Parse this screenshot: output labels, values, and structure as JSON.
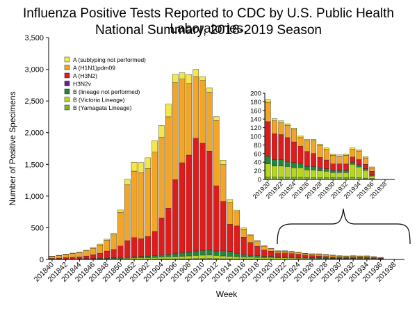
{
  "chart_data": {
    "type": "bar",
    "stacked": true,
    "title": "Influenza Positive Tests Reported to CDC by U.S. Public Health Laboratories,",
    "subtitle": "National Summary, 2018-2019 Season",
    "xlabel": "Week",
    "ylabel": "Number of Positive Specimens",
    "ylim": [
      0,
      3500
    ],
    "yticks": [
      0,
      500,
      1000,
      1500,
      2000,
      2500,
      3000,
      3500
    ],
    "ytick_labels": [
      "0",
      "500",
      "1,000",
      "1,500",
      "2,000",
      "2,500",
      "3,000",
      "3,500"
    ],
    "grid": false,
    "legend_position": "top-left",
    "categories": [
      "201840",
      "201841",
      "201842",
      "201843",
      "201844",
      "201845",
      "201846",
      "201847",
      "201848",
      "201849",
      "201850",
      "201851",
      "201852",
      "201901",
      "201902",
      "201903",
      "201904",
      "201905",
      "201906",
      "201907",
      "201908",
      "201909",
      "201910",
      "201911",
      "201912",
      "201913",
      "201914",
      "201915",
      "201916",
      "201917",
      "201918",
      "201919",
      "201920",
      "201921",
      "201922",
      "201923",
      "201924",
      "201925",
      "201926",
      "201927",
      "201928",
      "201929",
      "201930",
      "201931",
      "201932",
      "201933",
      "201934",
      "201935",
      "201936",
      "201937",
      "201938",
      "201939"
    ],
    "x_tick_labels": [
      "201840",
      "201842",
      "201844",
      "201846",
      "201848",
      "201850",
      "201852",
      "201902",
      "201904",
      "201906",
      "201908",
      "201910",
      "201912",
      "201914",
      "201916",
      "201918",
      "201920",
      "201922",
      "201924",
      "201926",
      "201928",
      "201930",
      "201932",
      "201934",
      "201936",
      "201938"
    ],
    "series": [
      {
        "name": "A (subtyping not performed)",
        "color": "#f5e74a",
        "values": [
          5,
          5,
          6,
          7,
          8,
          10,
          12,
          14,
          18,
          25,
          40,
          90,
          140,
          160,
          170,
          180,
          190,
          200,
          130,
          100,
          140,
          120,
          60,
          70,
          60,
          70,
          50,
          30,
          20,
          15,
          10,
          8,
          6,
          5,
          6,
          6,
          5,
          5,
          5,
          4,
          4,
          4,
          3,
          3,
          3,
          3,
          3,
          3,
          2,
          0,
          0,
          0
        ]
      },
      {
        "name": "A (H1N1)pdm09",
        "color": "#f2a526",
        "values": [
          30,
          40,
          50,
          60,
          70,
          85,
          100,
          130,
          170,
          230,
          530,
          880,
          1050,
          1040,
          1070,
          1250,
          1270,
          1440,
          1530,
          1320,
          1130,
          970,
          990,
          930,
          1030,
          580,
          340,
          220,
          130,
          110,
          80,
          60,
          40,
          30,
          30,
          30,
          30,
          20,
          25,
          30,
          28,
          25,
          20,
          18,
          20,
          18,
          20,
          15,
          10,
          0,
          0,
          0
        ]
      },
      {
        "name": "A (H3N2)",
        "color": "#e01b1b",
        "values": [
          10,
          15,
          20,
          25,
          30,
          40,
          60,
          80,
          110,
          130,
          180,
          260,
          300,
          280,
          310,
          380,
          580,
          730,
          1170,
          1420,
          1530,
          1780,
          1690,
          1560,
          1030,
          780,
          430,
          430,
          270,
          200,
          150,
          100,
          80,
          60,
          60,
          55,
          50,
          40,
          35,
          30,
          25,
          20,
          15,
          15,
          15,
          12,
          12,
          10,
          8,
          0,
          0,
          0
        ]
      },
      {
        "name": "H3N2v",
        "color": "#6a1c9a",
        "values": [
          0,
          0,
          0,
          0,
          0,
          0,
          0,
          0,
          0,
          0,
          0,
          0,
          0,
          0,
          0,
          0,
          0,
          0,
          0,
          0,
          0,
          0,
          0,
          0,
          0,
          0,
          0,
          0,
          0,
          0,
          0,
          0,
          0,
          0,
          0,
          0,
          0,
          0,
          0,
          0,
          0,
          0,
          0,
          0,
          0,
          0,
          0,
          0,
          0,
          0,
          0,
          0
        ]
      },
      {
        "name": "B (lineage not performed)",
        "color": "#22873c",
        "values": [
          3,
          3,
          4,
          4,
          5,
          6,
          7,
          8,
          10,
          12,
          14,
          16,
          20,
          22,
          25,
          30,
          35,
          40,
          45,
          55,
          60,
          70,
          75,
          80,
          70,
          80,
          75,
          55,
          40,
          30,
          25,
          20,
          18,
          15,
          15,
          12,
          12,
          10,
          8,
          8,
          6,
          6,
          5,
          5,
          5,
          5,
          5,
          4,
          3,
          0,
          0,
          0
        ]
      },
      {
        "name": "B (Victoria Lineage)",
        "color": "#b7d71c",
        "values": [
          2,
          2,
          3,
          3,
          4,
          5,
          6,
          6,
          8,
          10,
          12,
          15,
          18,
          20,
          22,
          25,
          30,
          32,
          35,
          40,
          45,
          50,
          55,
          55,
          50,
          45,
          40,
          35,
          30,
          28,
          25,
          22,
          25,
          20,
          20,
          18,
          15,
          15,
          12,
          12,
          12,
          10,
          10,
          10,
          10,
          12,
          12,
          10,
          6,
          0,
          0,
          0
        ]
      },
      {
        "name": "B (Yamagata Lineage)",
        "color": "#7bb32c",
        "values": [
          1,
          1,
          1,
          1,
          2,
          2,
          2,
          3,
          3,
          4,
          4,
          5,
          5,
          6,
          6,
          7,
          8,
          8,
          9,
          10,
          10,
          12,
          12,
          14,
          12,
          10,
          10,
          8,
          8,
          8,
          7,
          7,
          6,
          6,
          6,
          5,
          5,
          5,
          4,
          4,
          4,
          4,
          4,
          4,
          4,
          5,
          4,
          3,
          2,
          0,
          0,
          0
        ]
      }
    ],
    "inset": {
      "type": "bar",
      "stacked": true,
      "ylim": [
        0,
        200
      ],
      "yticks": [
        0,
        20,
        40,
        60,
        80,
        100,
        120,
        140,
        160,
        180,
        200
      ],
      "ytick_labels": [
        "0",
        "20",
        "40",
        "60",
        "80",
        "100",
        "120",
        "140",
        "160",
        "180",
        "200"
      ],
      "categories": [
        "201920",
        "201921",
        "201922",
        "201923",
        "201924",
        "201925",
        "201926",
        "201927",
        "201928",
        "201929",
        "201930",
        "201931",
        "201932",
        "201933",
        "201934",
        "201935",
        "201936",
        "201937",
        "201938",
        "201939"
      ],
      "x_tick_labels": [
        "201920",
        "201922",
        "201924",
        "201926",
        "201928",
        "201930",
        "201932",
        "201934",
        "201936",
        "201938"
      ],
      "series": [
        {
          "name": "A (subtyping not performed)",
          "values": [
            6,
            5,
            4,
            4,
            4,
            4,
            3,
            3,
            3,
            3,
            3,
            3,
            3,
            3,
            3,
            3,
            2,
            0,
            0,
            0
          ]
        },
        {
          "name": "A (H1N1)pdm09",
          "values": [
            45,
            30,
            28,
            28,
            28,
            20,
            25,
            30,
            28,
            25,
            20,
            18,
            20,
            18,
            20,
            15,
            8,
            0,
            0,
            0
          ]
        },
        {
          "name": "A (H3N2)",
          "values": [
            80,
            60,
            58,
            55,
            48,
            40,
            35,
            30,
            25,
            20,
            15,
            15,
            15,
            12,
            12,
            10,
            8,
            0,
            0,
            0
          ]
        },
        {
          "name": "H3N2v",
          "values": [
            0,
            0,
            0,
            0,
            0,
            0,
            0,
            0,
            0,
            0,
            0,
            0,
            0,
            0,
            0,
            0,
            0,
            0,
            0,
            0
          ]
        },
        {
          "name": "B (lineage not performed)",
          "values": [
            18,
            15,
            15,
            12,
            12,
            10,
            8,
            8,
            6,
            6,
            5,
            5,
            5,
            5,
            5,
            4,
            3,
            0,
            0,
            0
          ]
        },
        {
          "name": "B (Victoria Lineage)",
          "values": [
            30,
            25,
            25,
            25,
            22,
            22,
            18,
            18,
            16,
            15,
            12,
            12,
            12,
            30,
            25,
            18,
            6,
            0,
            0,
            0
          ]
        },
        {
          "name": "B (Yamagata Lineage)",
          "values": [
            6,
            6,
            6,
            5,
            5,
            5,
            4,
            4,
            4,
            4,
            4,
            4,
            4,
            5,
            4,
            3,
            2,
            0,
            0,
            0
          ]
        }
      ]
    }
  }
}
